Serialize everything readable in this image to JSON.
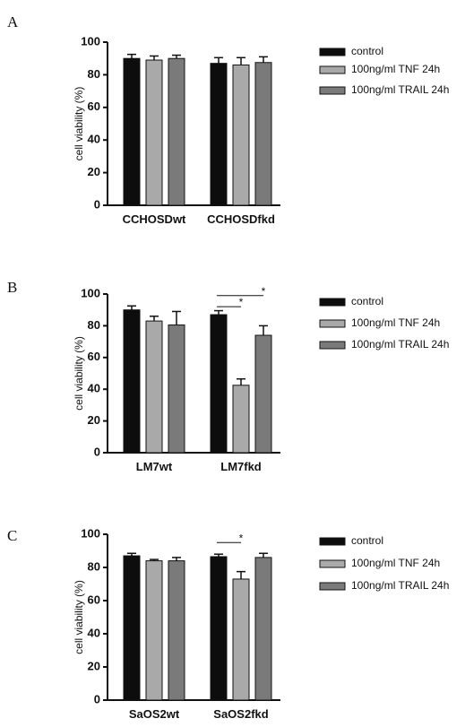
{
  "chart_data": [
    {
      "type": "bar",
      "panel": "A",
      "categories": [
        "CCHOSDwt",
        "CCHOSDfkd"
      ],
      "ylabel": "cell viability (%)",
      "xlabel": "",
      "ylim": [
        0,
        100
      ],
      "yticks": [
        0,
        20,
        40,
        60,
        80,
        100
      ],
      "series": [
        {
          "name": "control",
          "values": [
            90,
            87
          ],
          "errors": [
            2.5,
            3.5
          ]
        },
        {
          "name": "100ng/ml TNF 24h",
          "values": [
            89,
            86
          ],
          "errors": [
            2.5,
            4.5
          ]
        },
        {
          "name": "100ng/ml TRAIL 24h",
          "values": [
            90,
            87.5
          ],
          "errors": [
            2,
            3.5
          ]
        }
      ],
      "annotations": [],
      "legend_position": "right"
    },
    {
      "type": "bar",
      "panel": "B",
      "categories": [
        "LM7wt",
        "LM7fkd"
      ],
      "ylabel": "cell viability (%)",
      "xlabel": "",
      "ylim": [
        0,
        100
      ],
      "yticks": [
        0,
        20,
        40,
        60,
        80,
        100
      ],
      "series": [
        {
          "name": "control",
          "values": [
            90,
            87
          ],
          "errors": [
            2.5,
            2.5
          ]
        },
        {
          "name": "100ng/ml TNF 24h",
          "values": [
            83,
            42.5
          ],
          "errors": [
            3,
            4
          ]
        },
        {
          "name": "100ng/ml TRAIL 24h",
          "values": [
            80.5,
            74
          ],
          "errors": [
            8.5,
            6
          ]
        }
      ],
      "annotations": [
        {
          "group": 1,
          "from": 0,
          "to": 2,
          "y": 99,
          "text": "*"
        },
        {
          "group": 1,
          "from": 0,
          "to": 1,
          "y": 92,
          "text": "*"
        }
      ],
      "legend_position": "right"
    },
    {
      "type": "bar",
      "panel": "C",
      "categories": [
        "SaOS2wt",
        "SaOS2fkd"
      ],
      "ylabel": "cell viability (%)",
      "xlabel": "",
      "ylim": [
        0,
        100
      ],
      "yticks": [
        0,
        20,
        40,
        60,
        80,
        100
      ],
      "series": [
        {
          "name": "control",
          "values": [
            87,
            86.5
          ],
          "errors": [
            1.5,
            1.5
          ]
        },
        {
          "name": "100ng/ml TNF 24h",
          "values": [
            84,
            73
          ],
          "errors": [
            0.8,
            4.5
          ]
        },
        {
          "name": "100ng/ml TRAIL 24h",
          "values": [
            84,
            86
          ],
          "errors": [
            2,
            2.5
          ]
        }
      ],
      "annotations": [
        {
          "group": 1,
          "from": 0,
          "to": 1,
          "y": 95,
          "text": "*"
        }
      ],
      "legend_position": "right"
    }
  ],
  "colors": {
    "control": "#0d0d0d",
    "tnf": "#a9a9a9",
    "trail": "#7a7a7a",
    "axis": "#111111"
  }
}
